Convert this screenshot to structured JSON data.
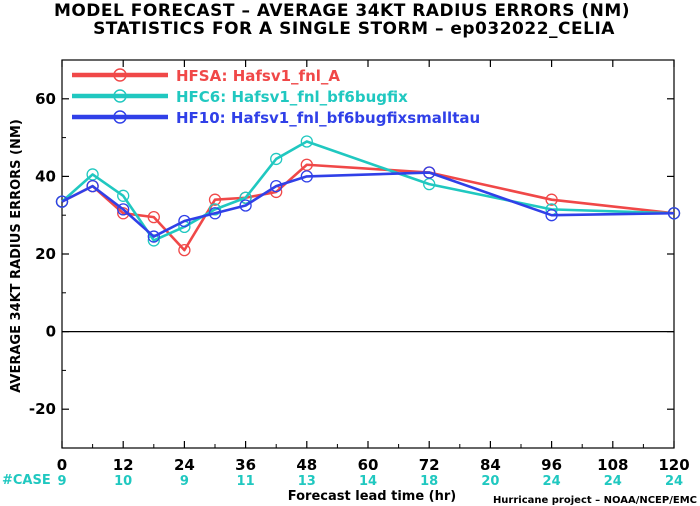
{
  "titles": {
    "line1": "MODEL FORECAST – AVERAGE 34KT RADIUS ERRORS (NM)",
    "line2": "STATISTICS FOR A SINGLE STORM – ep032022_CELIA"
  },
  "credit": "Hurricane project – NOAA/NCEP/EMC",
  "case_label": "#CASE",
  "chart_data": {
    "type": "line",
    "title": "MODEL FORECAST – AVERAGE 34KT RADIUS ERRORS (NM)",
    "subtitle": "STATISTICS FOR A SINGLE STORM – ep032022_CELIA",
    "xlabel": "Forecast lead time (hr)",
    "ylabel": "AVERAGE 34KT RADIUS ERRORS (NM)",
    "xlim": [
      0,
      120
    ],
    "ylim": [
      -30,
      70
    ],
    "x_ticks": [
      0,
      12,
      24,
      36,
      48,
      60,
      72,
      84,
      96,
      108,
      120
    ],
    "y_ticks": [
      -20,
      0,
      20,
      40,
      60
    ],
    "zero_line": true,
    "grid": false,
    "legend_position": "top-left",
    "cases": [
      9,
      10,
      9,
      11,
      13,
      14,
      18,
      20,
      24,
      24,
      24
    ],
    "series": [
      {
        "name": "HFSA: Hafsv1_fnl_A",
        "color": "#f04848",
        "x": [
          0,
          6,
          12,
          18,
          24,
          30,
          36,
          42,
          48,
          72,
          96,
          120
        ],
        "values": [
          33.5,
          37.5,
          30.5,
          29.5,
          21,
          34,
          34.5,
          36,
          43,
          41,
          34,
          30.5
        ]
      },
      {
        "name": "HFC6: Hafsv1_fnl_bf6bugfix",
        "color": "#20c8c0",
        "x": [
          0,
          6,
          12,
          18,
          24,
          30,
          36,
          42,
          48,
          72,
          96,
          120
        ],
        "values": [
          33.5,
          40.5,
          35,
          23.5,
          27,
          31.5,
          34.5,
          44.5,
          49,
          38,
          31.5,
          30.5
        ]
      },
      {
        "name": "HF10: Hafsv1_fnl_bf6bugfixsmalltau",
        "color": "#3040e8",
        "x": [
          0,
          6,
          12,
          18,
          24,
          30,
          36,
          42,
          48,
          72,
          96,
          120
        ],
        "values": [
          33.5,
          37.5,
          31.5,
          24.5,
          28.5,
          30.5,
          32.5,
          37.5,
          40,
          41,
          30,
          30.5
        ]
      }
    ]
  }
}
